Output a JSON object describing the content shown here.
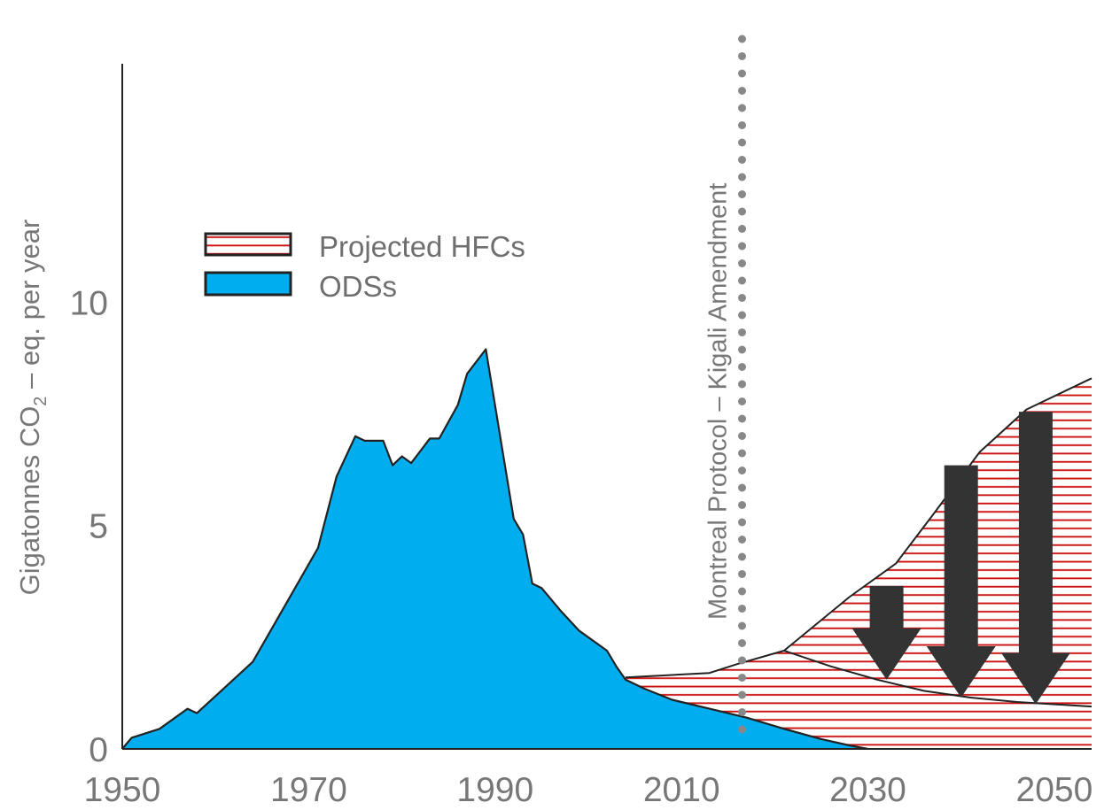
{
  "chart_data": {
    "type": "area",
    "title": "",
    "xlabel": "",
    "ylabel": "Gigatonnes CO",
    "ylabel_sub": "2",
    "ylabel_tail": " – eq. per year",
    "xlim": [
      1950,
      2054
    ],
    "ylim": [
      0,
      15.5
    ],
    "x_ticks": [
      "1950",
      "1970",
      "1990",
      "2010",
      "2030",
      "2050"
    ],
    "y_ticks": [
      "0",
      "5",
      "10"
    ],
    "grid": false,
    "legend_position": "upper-left",
    "legend": {
      "hfc_label": "Projected HFCs",
      "ods_label": "ODSs"
    },
    "annotation": {
      "label": "Montreal Protocol – Kigali Amendment",
      "x": 2016.5
    },
    "colors": {
      "ods": "#00aeef",
      "hfc_hatch": "#cc1111",
      "outline": "#222222",
      "arrow": "#333333",
      "annotation_line": "#888888",
      "text": "#777777"
    },
    "series": [
      {
        "name": "ODSs",
        "x": [
          1950,
          1951,
          1954,
          1957,
          1958,
          1964,
          1971,
          1973,
          1975,
          1976,
          1978,
          1979,
          1980,
          1981,
          1983,
          1984,
          1986,
          1987,
          1989,
          1992,
          1993,
          1994,
          1995,
          1997,
          1999,
          2002,
          2003,
          2004,
          2006,
          2009,
          2013,
          2017,
          2021,
          2025,
          2028,
          2030
        ],
        "values": [
          0,
          0.25,
          0.45,
          0.9,
          0.8,
          1.95,
          4.5,
          6.1,
          7.0,
          6.9,
          6.9,
          6.35,
          6.55,
          6.4,
          6.95,
          6.95,
          7.7,
          8.4,
          8.95,
          5.15,
          4.8,
          3.7,
          3.6,
          3.1,
          2.65,
          2.2,
          1.85,
          1.55,
          1.35,
          1.1,
          0.9,
          0.7,
          0.45,
          0.22,
          0.08,
          0
        ]
      },
      {
        "name": "Projected HFCs",
        "x": [
          2004,
          2013,
          2016,
          2021,
          2028,
          2033,
          2037,
          2042,
          2047,
          2054
        ],
        "values": [
          1.6,
          1.7,
          1.9,
          2.2,
          3.4,
          4.15,
          5.25,
          6.65,
          7.6,
          8.3
        ]
      },
      {
        "name": "",
        "x": [
          2021,
          2026,
          2031,
          2036,
          2041,
          2046,
          2054
        ],
        "values": [
          2.2,
          1.85,
          1.55,
          1.3,
          1.15,
          1.05,
          0.95
        ]
      }
    ],
    "arrows": [
      {
        "x": 2032,
        "from": 3.65,
        "to": 1.55
      },
      {
        "x": 2040,
        "from": 6.35,
        "to": 1.15
      },
      {
        "x": 2048,
        "from": 7.55,
        "to": 1.0
      }
    ]
  }
}
